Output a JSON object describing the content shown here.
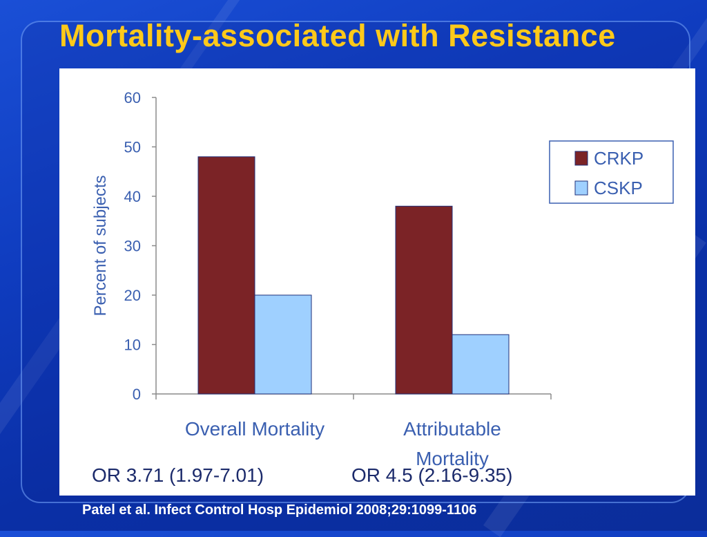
{
  "slide": {
    "title": "Mortality-associated with Resistance",
    "citation": "Patel et al. Infect Control Hosp Epidemiol 2008;29:1099-1106",
    "notes": [
      "OR 3.71 (1.97-7.01)",
      "OR 4.5 (2.16-9.35)"
    ]
  },
  "colors": {
    "background": "#0f3cbf",
    "title": "#ffc91a",
    "axis_text": "#3a5fb0",
    "series_crkp": "#7b2326",
    "series_cskp": "#9fd0ff"
  },
  "chart_data": {
    "type": "bar",
    "title": "",
    "xlabel": "",
    "ylabel": "Percent of subjects",
    "ylim": [
      0,
      60
    ],
    "yticks": [
      0,
      10,
      20,
      30,
      40,
      50,
      60
    ],
    "grid": false,
    "legend": "right",
    "categories": [
      {
        "label_lines": [
          "Overall Mortality"
        ]
      },
      {
        "label_lines": [
          "Attributable",
          "Mortality"
        ]
      }
    ],
    "series": [
      {
        "name": "CRKP",
        "color": "#7b2326",
        "values": [
          48,
          38
        ]
      },
      {
        "name": "CSKP",
        "color": "#9fd0ff",
        "values": [
          20,
          12
        ]
      }
    ]
  }
}
